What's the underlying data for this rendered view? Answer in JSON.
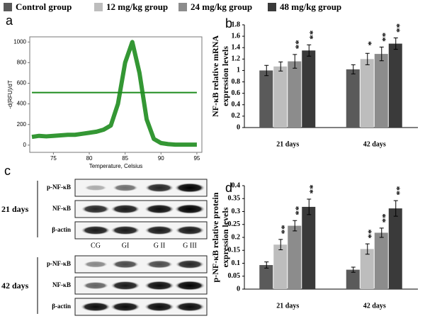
{
  "chart_data": [
    {
      "type": "line",
      "label": "a",
      "xlabel": "Temperature, Celsius",
      "ylabel": "-d(RFU)/dT",
      "x": [
        72,
        73,
        74,
        75,
        76,
        77,
        78,
        79,
        80,
        81,
        82,
        83,
        84,
        85,
        86,
        87,
        88,
        89,
        90,
        91,
        92,
        93,
        94,
        95
      ],
      "series": [
        {
          "color": "#1e8c1e",
          "values": [
            80,
            90,
            85,
            90,
            95,
            100,
            100,
            110,
            120,
            130,
            150,
            190,
            400,
            800,
            1000,
            700,
            250,
            60,
            20,
            10,
            5,
            5,
            5,
            5
          ]
        }
      ],
      "hline": 510,
      "xlim": [
        71.7,
        95.7
      ],
      "xticks": [
        75,
        80,
        85,
        90,
        95
      ],
      "ylim": [
        -70,
        1050
      ],
      "yticks": [
        0,
        200,
        400,
        600,
        800,
        1000
      ]
    },
    {
      "type": "bar",
      "label": "b",
      "ylabel": [
        "NF-κB relative mRNA",
        "expression levels"
      ],
      "categories": [
        "21 days",
        "42 days"
      ],
      "series": [
        {
          "name": "Control group",
          "color": "#5a5a5a",
          "values": [
            1.0,
            1.02
          ],
          "errors": [
            0.09,
            0.08
          ],
          "stars": [
            null,
            null
          ]
        },
        {
          "name": "12 mg/kg group",
          "color": "#bdbdbd",
          "values": [
            1.07,
            1.2
          ],
          "errors": [
            0.08,
            0.1
          ],
          "stars": [
            null,
            "*"
          ]
        },
        {
          "name": "24 mg/kg group",
          "color": "#8c8c8c",
          "values": [
            1.16,
            1.29
          ],
          "errors": [
            0.12,
            0.12
          ],
          "stars": [
            "**",
            "**"
          ]
        },
        {
          "name": "48 mg/kg group",
          "color": "#3a3a3a",
          "values": [
            1.35,
            1.47
          ],
          "errors": [
            0.1,
            0.1
          ],
          "stars": [
            "**",
            "**"
          ]
        }
      ],
      "ylim": [
        0,
        1.8
      ],
      "yticks": [
        0,
        0.2,
        0.4,
        0.6,
        0.8,
        1,
        1.2,
        1.4,
        1.6,
        1.8
      ]
    },
    {
      "type": "bar",
      "label": "d",
      "ylabel": [
        "p-NF-κB relative protein",
        "expression levels"
      ],
      "categories": [
        "21 days",
        "42 days"
      ],
      "series": [
        {
          "color": "#5a5a5a",
          "values": [
            0.093,
            0.075
          ],
          "errors": [
            0.012,
            0.01
          ],
          "stars": [
            null,
            null
          ]
        },
        {
          "color": "#bdbdbd",
          "values": [
            0.172,
            0.155
          ],
          "errors": [
            0.02,
            0.02
          ],
          "stars": [
            "**",
            "**"
          ]
        },
        {
          "color": "#8c8c8c",
          "values": [
            0.245,
            0.218
          ],
          "errors": [
            0.02,
            0.018
          ],
          "stars": [
            "**",
            "**"
          ]
        },
        {
          "color": "#3a3a3a",
          "values": [
            0.318,
            0.312
          ],
          "errors": [
            0.03,
            0.03
          ],
          "stars": [
            "**",
            "**"
          ]
        }
      ],
      "ylim": [
        0,
        0.4
      ],
      "yticks": [
        0,
        0.05,
        0.1,
        0.15,
        0.2,
        0.25,
        0.3,
        0.35,
        0.4
      ]
    }
  ],
  "blot": {
    "label": "c",
    "lanes": [
      "CG",
      "GI",
      "G II",
      "G III"
    ],
    "groups": [
      {
        "time": "21 days",
        "rows": [
          "p-NF-κB",
          "NF-κB",
          "β-actin"
        ]
      },
      {
        "time": "42 days",
        "rows": [
          "p-NF-κB",
          "NF-κB",
          "β-actin"
        ]
      }
    ]
  }
}
